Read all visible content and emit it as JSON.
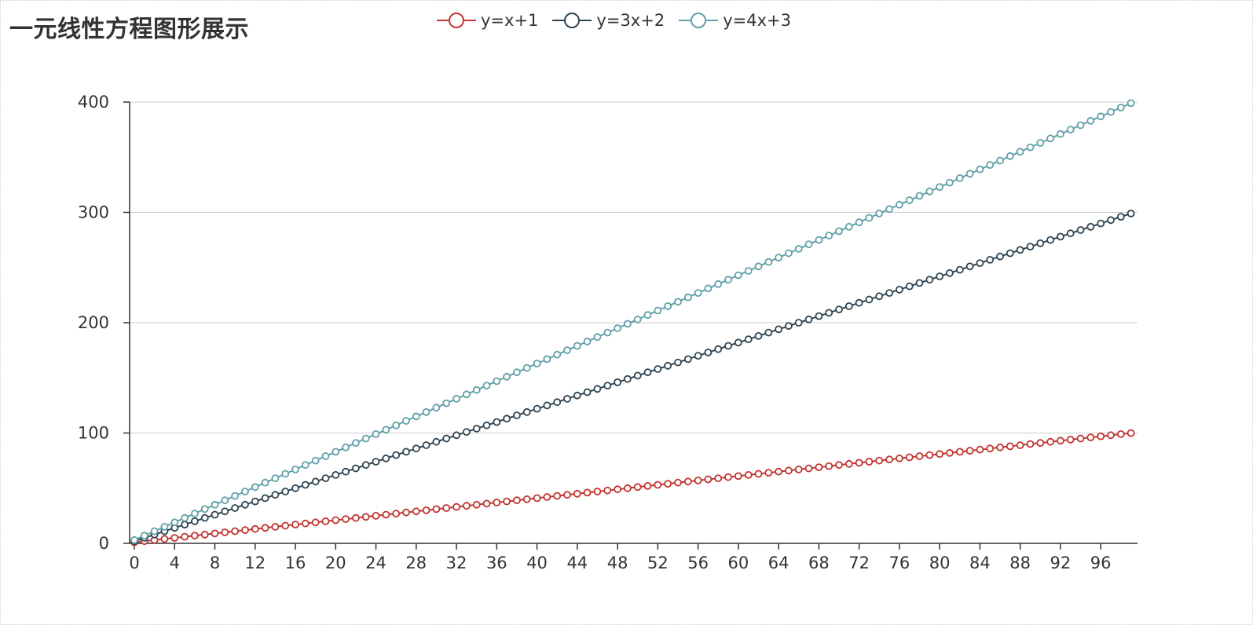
{
  "title": "一元线性方程图形展示",
  "chart_data": {
    "type": "line",
    "title": "一元线性方程图形展示",
    "xlabel": "",
    "ylabel": "",
    "x": {
      "start": 0,
      "end": 99,
      "step": 1
    },
    "x_tick_labels": [
      "0",
      "4",
      "8",
      "12",
      "16",
      "20",
      "24",
      "28",
      "32",
      "36",
      "40",
      "44",
      "48",
      "52",
      "56",
      "60",
      "64",
      "68",
      "72",
      "76",
      "80",
      "84",
      "88",
      "92",
      "96"
    ],
    "ylim": [
      0,
      400
    ],
    "y_ticks": [
      0,
      100,
      200,
      300,
      400
    ],
    "grid": "horizontal",
    "legend_position": "top",
    "series": [
      {
        "name": "y=x+1",
        "slope": 1,
        "intercept": 1,
        "color": "#c23531",
        "marker": "circle"
      },
      {
        "name": "y=3x+2",
        "slope": 3,
        "intercept": 2,
        "color": "#2f4554",
        "marker": "circle"
      },
      {
        "name": "y=4x+3",
        "slope": 4,
        "intercept": 3,
        "color": "#61a0a8",
        "marker": "circle"
      }
    ]
  }
}
